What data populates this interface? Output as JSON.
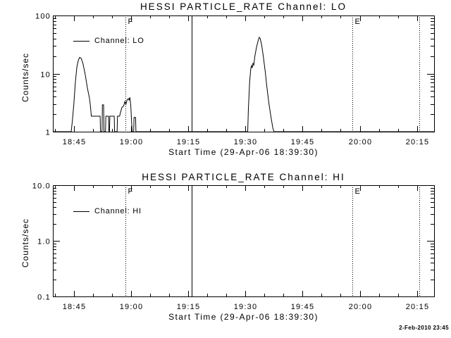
{
  "page": {
    "background": "#ffffff",
    "foreground": "#000000"
  },
  "footer": {
    "timestamp": "2-Feb-2010 23:45"
  },
  "chart_data": [
    {
      "type": "line",
      "title": "HESSI PARTICLE_RATE Channel: LO",
      "xlabel": "Start Time (29-Apr-06 18:39:30)",
      "ylabel": "Counts/sec",
      "yscale": "log",
      "ylim": [
        1,
        100
      ],
      "xlim_minutes": [
        0,
        100
      ],
      "x_epoch": "29-Apr-06 18:39:30",
      "grid": false,
      "legend": {
        "label": "Channel: LO",
        "position": "upper-left"
      },
      "yticks": [
        {
          "value": 1,
          "label": "1"
        },
        {
          "value": 10,
          "label": "10"
        },
        {
          "value": 100,
          "label": "100"
        }
      ],
      "xticks": [
        {
          "minutes": 5.5,
          "label": "18:45"
        },
        {
          "minutes": 20.5,
          "label": "19:00"
        },
        {
          "minutes": 35.5,
          "label": "19:15"
        },
        {
          "minutes": 50.5,
          "label": "19:30"
        },
        {
          "minutes": 65.5,
          "label": "19:45"
        },
        {
          "minutes": 80.5,
          "label": "20:00"
        },
        {
          "minutes": 95.5,
          "label": "20:15"
        }
      ],
      "x_minor_step_minutes": 5,
      "markers": [
        {
          "minutes": 19.1,
          "style": "dotted",
          "label": "F"
        },
        {
          "minutes": 36.4,
          "style": "solid",
          "label": ""
        },
        {
          "minutes": 78.5,
          "style": "dotted",
          "label": "E"
        },
        {
          "minutes": 96.1,
          "style": "dotted",
          "label": ""
        }
      ],
      "series": [
        {
          "name": "Channel: LO",
          "points_minutes_counts": [
            [
              0,
              1
            ],
            [
              4.8,
              1
            ],
            [
              5.1,
              1.5
            ],
            [
              5.5,
              3
            ],
            [
              5.9,
              7
            ],
            [
              6.3,
              13
            ],
            [
              6.7,
              17
            ],
            [
              7.0,
              19
            ],
            [
              7.4,
              18.5
            ],
            [
              7.9,
              15
            ],
            [
              8.5,
              9.5
            ],
            [
              9.1,
              5.5
            ],
            [
              9.6,
              3.8
            ],
            [
              9.85,
              2.8
            ],
            [
              10.1,
              1.85
            ],
            [
              12.4,
              1.85
            ],
            [
              12.5,
              1
            ],
            [
              12.9,
              1
            ],
            [
              13.0,
              2.9
            ],
            [
              13.3,
              2.9
            ],
            [
              13.4,
              1
            ],
            [
              13.8,
              1
            ],
            [
              13.9,
              1.85
            ],
            [
              14.6,
              1.85
            ],
            [
              14.7,
              1
            ],
            [
              14.85,
              1
            ],
            [
              14.95,
              1.85
            ],
            [
              16.1,
              1.85
            ],
            [
              16.2,
              1
            ],
            [
              16.85,
              1
            ],
            [
              16.95,
              1.85
            ],
            [
              17.5,
              1.85
            ],
            [
              17.7,
              2.1
            ],
            [
              18.1,
              2.6
            ],
            [
              18.6,
              2.8
            ],
            [
              18.9,
              3.3
            ],
            [
              19.15,
              2.95
            ],
            [
              19.5,
              3.55
            ],
            [
              19.8,
              3.7
            ],
            [
              20.0,
              3.5
            ],
            [
              20.2,
              3.9
            ],
            [
              20.45,
              2.8
            ],
            [
              20.6,
              1.76
            ],
            [
              20.8,
              1
            ],
            [
              21.2,
              1
            ],
            [
              21.3,
              1.76
            ],
            [
              21.7,
              1.76
            ],
            [
              21.8,
              1
            ],
            [
              51.1,
              1
            ],
            [
              51.3,
              2.5
            ],
            [
              51.6,
              7
            ],
            [
              51.9,
              12
            ],
            [
              52.1,
              13.7
            ],
            [
              52.3,
              12.5
            ],
            [
              52.5,
              15
            ],
            [
              52.7,
              14
            ],
            [
              53.0,
              20
            ],
            [
              53.4,
              28
            ],
            [
              53.8,
              36
            ],
            [
              54.1,
              42
            ],
            [
              54.4,
              40
            ],
            [
              54.8,
              30
            ],
            [
              55.2,
              20
            ],
            [
              55.7,
              11
            ],
            [
              56.2,
              5.5
            ],
            [
              56.7,
              3
            ],
            [
              57.2,
              1.8
            ],
            [
              57.7,
              1.15
            ],
            [
              58.0,
              1
            ],
            [
              100,
              1
            ]
          ]
        }
      ]
    },
    {
      "type": "line",
      "title": "HESSI PARTICLE_RATE Channel: HI",
      "xlabel": "Start Time (29-Apr-06 18:39:30)",
      "ylabel": "Counts/sec",
      "yscale": "log",
      "ylim": [
        0.1,
        10
      ],
      "xlim_minutes": [
        0,
        100
      ],
      "x_epoch": "29-Apr-06 18:39:30",
      "grid": false,
      "legend": {
        "label": "Channel: HI",
        "position": "upper-left"
      },
      "yticks": [
        {
          "value": 0.1,
          "label": "0.1"
        },
        {
          "value": 1,
          "label": "1.0"
        },
        {
          "value": 10,
          "label": "10.0"
        }
      ],
      "xticks": [
        {
          "minutes": 5.5,
          "label": "18:45"
        },
        {
          "minutes": 20.5,
          "label": "19:00"
        },
        {
          "minutes": 35.5,
          "label": "19:15"
        },
        {
          "minutes": 50.5,
          "label": "19:30"
        },
        {
          "minutes": 65.5,
          "label": "19:45"
        },
        {
          "minutes": 80.5,
          "label": "20:00"
        },
        {
          "minutes": 95.5,
          "label": "20:15"
        }
      ],
      "x_minor_step_minutes": 5,
      "markers": [
        {
          "minutes": 19.1,
          "style": "dotted",
          "label": "F"
        },
        {
          "minutes": 36.4,
          "style": "solid",
          "label": ""
        },
        {
          "minutes": 78.5,
          "style": "dotted",
          "label": "E"
        },
        {
          "minutes": 96.1,
          "style": "dotted",
          "label": ""
        }
      ],
      "series": [
        {
          "name": "Channel: HI",
          "points_minutes_counts": []
        }
      ]
    }
  ]
}
